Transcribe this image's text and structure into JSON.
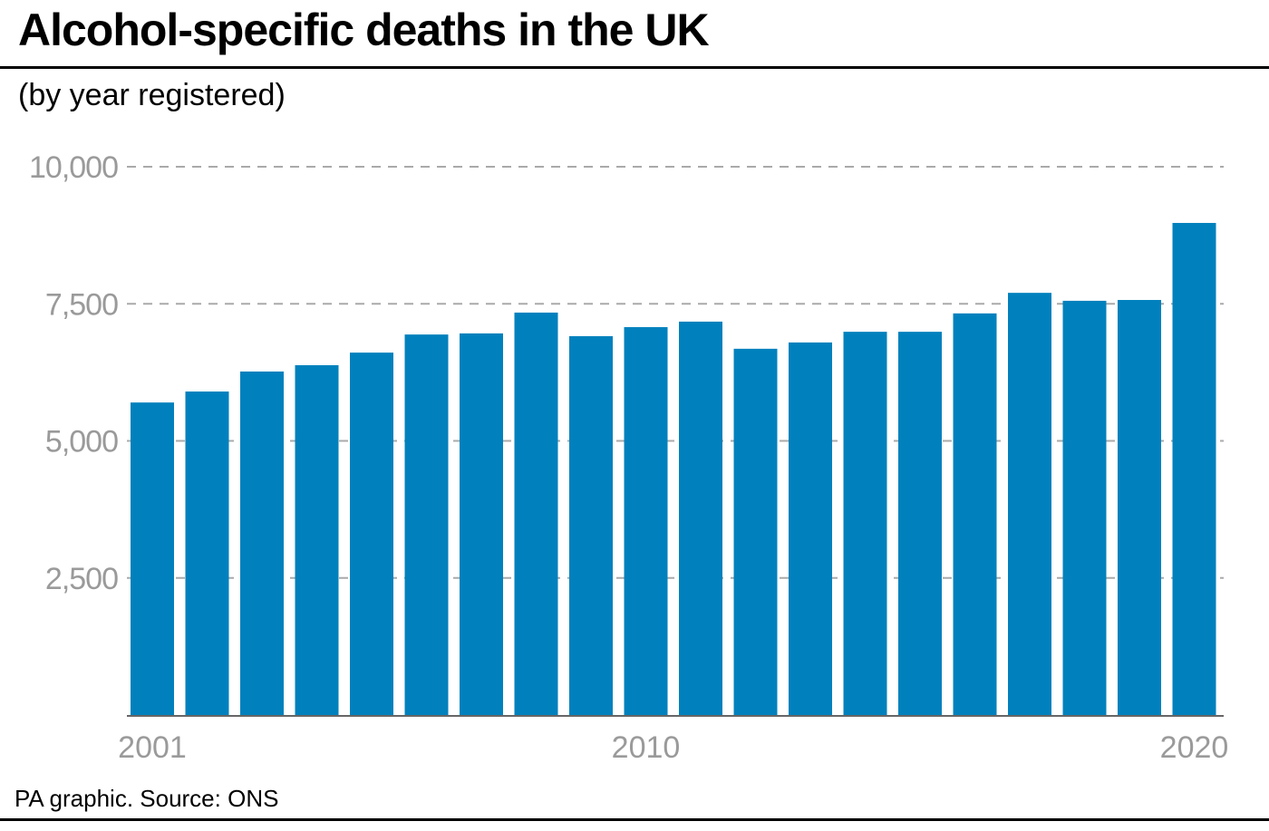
{
  "title": "Alcohol-specific deaths in the UK",
  "subtitle": "(by year registered)",
  "footer": "PA graphic. Source: ONS",
  "colors": {
    "bar": "#0081bd",
    "tick_label": "#9a9a9a",
    "grid": "#aaaaaa"
  },
  "chart_data": {
    "type": "bar",
    "title": "Alcohol-specific deaths in the UK",
    "subtitle": "(by year registered)",
    "xlabel": "",
    "ylabel": "",
    "categories": [
      "2001",
      "2002",
      "2003",
      "2004",
      "2005",
      "2006",
      "2007",
      "2008",
      "2009",
      "2010",
      "2011",
      "2012",
      "2013",
      "2014",
      "2015",
      "2016",
      "2017",
      "2018",
      "2019",
      "2020"
    ],
    "values": [
      5700,
      5900,
      6265,
      6380,
      6610,
      6940,
      6960,
      7340,
      6910,
      7075,
      7175,
      6680,
      6795,
      6990,
      6990,
      7325,
      7700,
      7555,
      7570,
      8975
    ],
    "ylim": [
      0,
      10000
    ],
    "yticks": [
      {
        "value": 2500,
        "label": "2,500"
      },
      {
        "value": 5000,
        "label": "5,000"
      },
      {
        "value": 7500,
        "label": "7,500"
      },
      {
        "value": 10000,
        "label": "10,000"
      }
    ],
    "xtick_labels": [
      "2001",
      "2010",
      "2020"
    ],
    "grid": true
  }
}
